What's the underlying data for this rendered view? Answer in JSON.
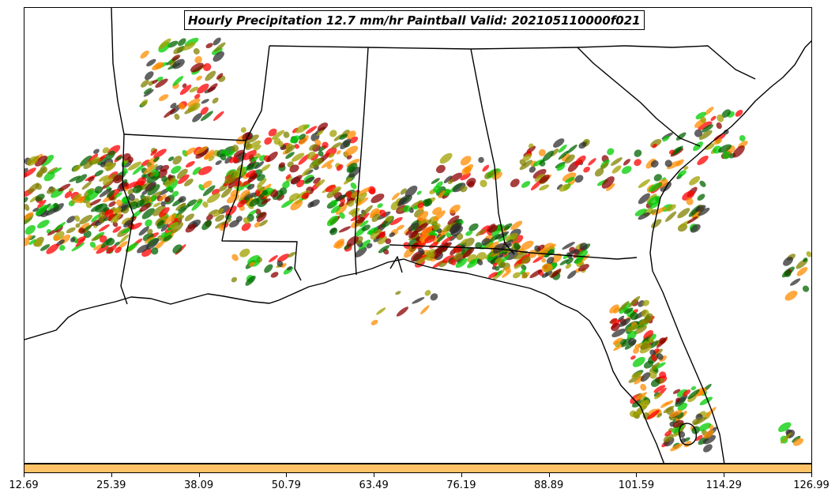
{
  "title": "Hourly Precipitation 12.7 mm/hr Paintball Valid: 202105110000f021",
  "colorbar": {
    "color": "#ffc266",
    "tick_labels": [
      "12.69",
      "25.39",
      "38.09",
      "50.79",
      "63.49",
      "76.19",
      "88.89",
      "101.59",
      "114.29",
      "126.99"
    ]
  },
  "map": {
    "region": "Southeastern United States",
    "boundary_color": "#000000",
    "paintball_colors": [
      "#ff0000",
      "#ff8c00",
      "#808000",
      "#00cc00",
      "#8b0000",
      "#2f2f2f",
      "#006400",
      "#a0a000"
    ]
  }
}
